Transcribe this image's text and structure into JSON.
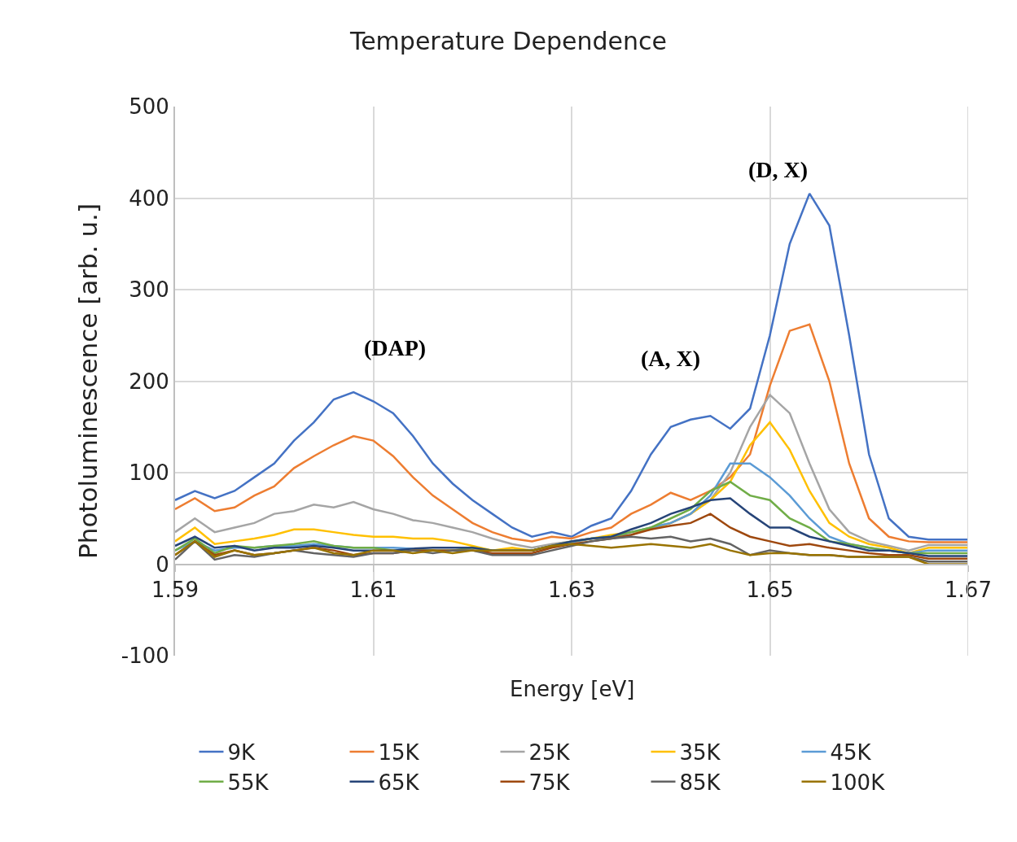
{
  "chart_data": {
    "type": "line",
    "title": "Temperature Dependence",
    "xlabel": "Energy [eV]",
    "ylabel": "Photoluminescence [arb. u.]",
    "x": [
      1.59,
      1.592,
      1.594,
      1.596,
      1.598,
      1.6,
      1.602,
      1.604,
      1.606,
      1.608,
      1.61,
      1.612,
      1.614,
      1.616,
      1.618,
      1.62,
      1.622,
      1.624,
      1.626,
      1.628,
      1.63,
      1.632,
      1.634,
      1.636,
      1.638,
      1.64,
      1.642,
      1.644,
      1.646,
      1.648,
      1.65,
      1.652,
      1.654,
      1.656,
      1.658,
      1.66,
      1.662,
      1.664,
      1.666,
      1.668,
      1.67
    ],
    "series": [
      {
        "name": "9K",
        "color": "#4472c4",
        "values": [
          70,
          80,
          72,
          80,
          95,
          110,
          135,
          155,
          180,
          188,
          178,
          165,
          140,
          110,
          88,
          70,
          55,
          40,
          30,
          35,
          30,
          42,
          50,
          80,
          120,
          150,
          158,
          162,
          148,
          170,
          250,
          350,
          405,
          370,
          250,
          120,
          50,
          30,
          27,
          27,
          27
        ]
      },
      {
        "name": "15K",
        "color": "#ed7d31",
        "values": [
          60,
          72,
          58,
          62,
          75,
          85,
          105,
          118,
          130,
          140,
          135,
          118,
          95,
          75,
          60,
          45,
          35,
          28,
          25,
          30,
          28,
          35,
          40,
          55,
          65,
          78,
          70,
          80,
          95,
          120,
          195,
          255,
          262,
          200,
          110,
          50,
          30,
          25,
          24,
          24,
          24
        ]
      },
      {
        "name": "25K",
        "color": "#a5a5a5",
        "values": [
          35,
          50,
          35,
          40,
          45,
          55,
          58,
          65,
          62,
          68,
          60,
          55,
          48,
          45,
          40,
          35,
          28,
          22,
          18,
          22,
          25,
          28,
          30,
          32,
          40,
          45,
          55,
          70,
          100,
          150,
          185,
          165,
          110,
          60,
          35,
          25,
          20,
          15,
          21,
          21,
          21
        ]
      },
      {
        "name": "35K",
        "color": "#ffc000",
        "values": [
          25,
          40,
          22,
          25,
          28,
          32,
          38,
          38,
          35,
          32,
          30,
          30,
          28,
          28,
          25,
          20,
          15,
          18,
          15,
          20,
          24,
          28,
          32,
          35,
          38,
          45,
          55,
          70,
          90,
          130,
          155,
          125,
          80,
          45,
          30,
          22,
          18,
          12,
          18,
          18,
          18
        ]
      },
      {
        "name": "45K",
        "color": "#5b9bd5",
        "values": [
          15,
          25,
          15,
          18,
          18,
          20,
          20,
          22,
          20,
          18,
          18,
          18,
          17,
          15,
          15,
          15,
          15,
          15,
          15,
          20,
          24,
          28,
          30,
          35,
          40,
          45,
          55,
          75,
          110,
          110,
          95,
          75,
          50,
          30,
          22,
          18,
          15,
          12,
          15,
          15,
          15
        ]
      },
      {
        "name": "55K",
        "color": "#70ad47",
        "values": [
          15,
          28,
          12,
          20,
          18,
          20,
          22,
          25,
          20,
          18,
          18,
          15,
          15,
          15,
          15,
          18,
          15,
          15,
          15,
          20,
          25,
          28,
          30,
          35,
          40,
          50,
          60,
          80,
          90,
          75,
          70,
          50,
          40,
          25,
          22,
          18,
          15,
          12,
          12,
          12,
          12
        ]
      },
      {
        "name": "65K",
        "color": "#264478",
        "values": [
          20,
          30,
          18,
          20,
          15,
          18,
          18,
          20,
          18,
          15,
          15,
          15,
          17,
          18,
          18,
          18,
          15,
          15,
          15,
          20,
          25,
          28,
          30,
          38,
          45,
          55,
          62,
          70,
          72,
          55,
          40,
          40,
          30,
          25,
          20,
          15,
          15,
          12,
          9,
          9,
          9
        ]
      },
      {
        "name": "75K",
        "color": "#9e480e",
        "values": [
          10,
          25,
          10,
          15,
          10,
          12,
          15,
          18,
          15,
          10,
          12,
          12,
          15,
          15,
          15,
          15,
          12,
          12,
          12,
          18,
          22,
          25,
          28,
          32,
          38,
          42,
          45,
          55,
          40,
          30,
          25,
          20,
          22,
          18,
          15,
          12,
          10,
          10,
          6,
          6,
          6
        ]
      },
      {
        "name": "85K",
        "color": "#636363",
        "values": [
          5,
          25,
          5,
          10,
          8,
          12,
          15,
          12,
          10,
          8,
          12,
          12,
          15,
          12,
          15,
          15,
          10,
          10,
          10,
          15,
          20,
          25,
          28,
          30,
          28,
          30,
          25,
          28,
          22,
          10,
          15,
          12,
          10,
          10,
          8,
          8,
          8,
          8,
          3,
          3,
          3
        ]
      },
      {
        "name": "100K",
        "color": "#997300",
        "values": [
          10,
          25,
          8,
          15,
          10,
          12,
          15,
          18,
          12,
          10,
          15,
          15,
          12,
          15,
          12,
          15,
          15,
          15,
          15,
          20,
          22,
          20,
          18,
          20,
          22,
          20,
          18,
          22,
          15,
          10,
          12,
          12,
          10,
          10,
          8,
          8,
          8,
          8,
          0,
          0,
          0
        ]
      }
    ],
    "xlim": [
      1.59,
      1.67
    ],
    "xticks": [
      1.59,
      1.61,
      1.63,
      1.65,
      1.67
    ],
    "ylim": [
      -100,
      500
    ],
    "yticks": [
      -100,
      0,
      100,
      200,
      300,
      400,
      500
    ],
    "grid": true,
    "legend": "bottom",
    "marker": "none",
    "line_style": "solid",
    "annotations": [
      "(DAP)",
      "(A, X)",
      "(D, X)"
    ]
  }
}
